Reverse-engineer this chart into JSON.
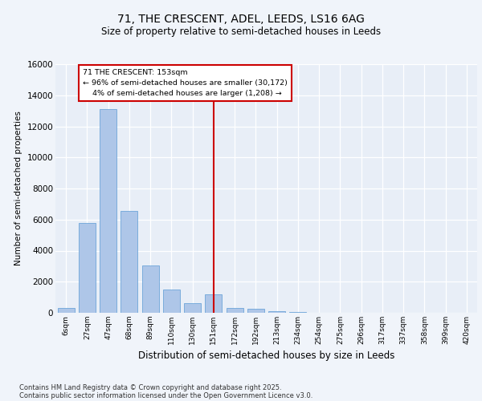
{
  "title1": "71, THE CRESCENT, ADEL, LEEDS, LS16 6AG",
  "title2": "Size of property relative to semi-detached houses in Leeds",
  "xlabel": "Distribution of semi-detached houses by size in Leeds",
  "ylabel": "Number of semi-detached properties",
  "categories": [
    "6sqm",
    "27sqm",
    "47sqm",
    "68sqm",
    "89sqm",
    "110sqm",
    "130sqm",
    "151sqm",
    "172sqm",
    "192sqm",
    "213sqm",
    "234sqm",
    "254sqm",
    "275sqm",
    "296sqm",
    "317sqm",
    "337sqm",
    "358sqm",
    "399sqm",
    "420sqm"
  ],
  "values": [
    320,
    5800,
    13100,
    6550,
    3050,
    1480,
    620,
    1200,
    330,
    260,
    120,
    60,
    20,
    10,
    5,
    2,
    1,
    0,
    0,
    0
  ],
  "bar_color": "#aec6e8",
  "bar_edge_color": "#5b9bd5",
  "vline_index": 7,
  "marker_label": "71 THE CRESCENT: 153sqm",
  "smaller_pct": "96%",
  "smaller_n": "30,172",
  "larger_pct": "4%",
  "larger_n": "1,208",
  "vline_color": "#cc0000",
  "annotation_box_color": "#cc0000",
  "ylim": [
    0,
    16000
  ],
  "yticks": [
    0,
    2000,
    4000,
    6000,
    8000,
    10000,
    12000,
    14000,
    16000
  ],
  "background_color": "#e8eef7",
  "footer1": "Contains HM Land Registry data © Crown copyright and database right 2025.",
  "footer2": "Contains public sector information licensed under the Open Government Licence v3.0.",
  "fig_bg": "#f0f4fa"
}
